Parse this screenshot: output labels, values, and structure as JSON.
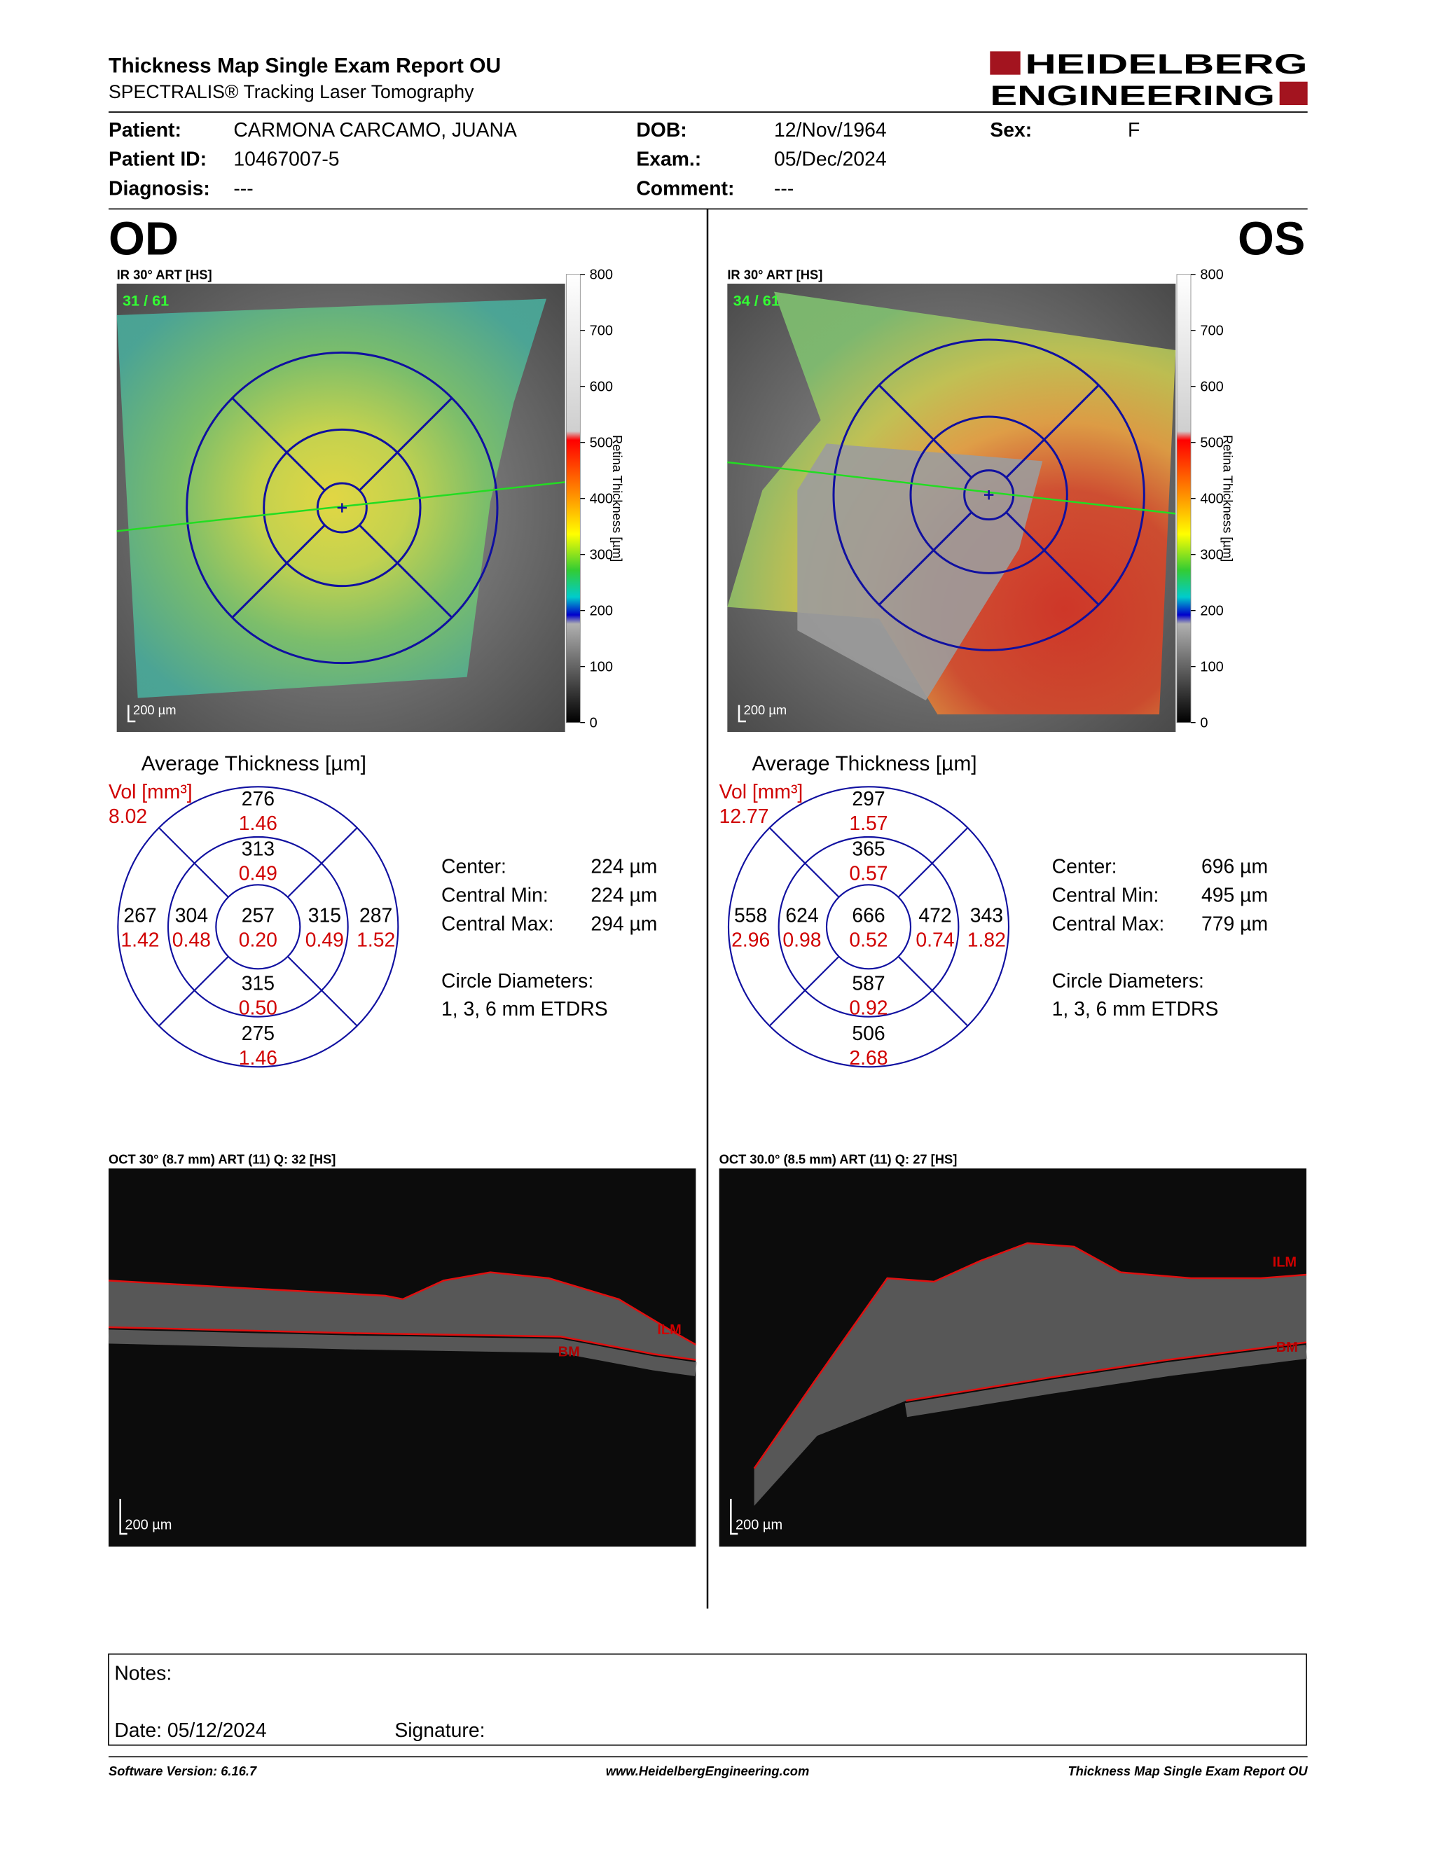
{
  "header": {
    "title": "Thickness Map Single Exam Report OU",
    "subtitle": "SPECTRALIS® Tracking Laser Tomography",
    "logo_line1": "HEIDELBERG",
    "logo_line2": "ENGINEERING"
  },
  "patient": [
    {
      "label": "Patient:",
      "value": "CARMONA CARCAMO, JUANA"
    },
    {
      "label": "Patient ID:",
      "value": "10467007-5"
    },
    {
      "label": "Diagnosis:",
      "value": "---"
    },
    {
      "label": "DOB:",
      "value": "12/Nov/1964"
    },
    {
      "label": "Exam.:",
      "value": "05/Dec/2024"
    },
    {
      "label": "Comment:",
      "value": "---"
    },
    {
      "label": "Sex:",
      "value": "F"
    }
  ],
  "eyes": [
    {
      "side": "OD",
      "fundus_label": "IR 30° ART [HS]",
      "scan_index": "31 / 61",
      "scale_label": "200 µm",
      "colorbar_ticks": [
        800,
        700,
        600,
        500,
        400,
        300,
        200,
        100,
        0
      ],
      "colorbar_title": "Retina  Thickness [µm]",
      "avg_title": "Average Thickness [µm]",
      "vol_label": "Vol [mm³]",
      "vol_value": "8.02",
      "sectors": [
        {
          "thickness": "276",
          "volume": "1.46"
        },
        {
          "thickness": "313",
          "volume": "0.49"
        },
        {
          "thickness": "267",
          "volume": "1.42"
        },
        {
          "thickness": "304",
          "volume": "0.48"
        },
        {
          "thickness": "257",
          "volume": "0.20"
        },
        {
          "thickness": "315",
          "volume": "0.49"
        },
        {
          "thickness": "287",
          "volume": "1.52"
        },
        {
          "thickness": "315",
          "volume": "0.50"
        },
        {
          "thickness": "275",
          "volume": "1.46"
        }
      ],
      "stats": [
        {
          "label": "Center:",
          "value": "224 µm"
        },
        {
          "label": "Central Min:",
          "value": "224 µm"
        },
        {
          "label": "Central Max:",
          "value": "294 µm"
        }
      ],
      "circle_title": "Circle Diameters:",
      "circle_value": "1, 3, 6 mm ETDRS",
      "oct_label": "OCT 30° (8.7 mm) ART (11) Q: 32 [HS]",
      "oct_scale": "200 µm",
      "ilm": "ILM",
      "bm": "BM"
    },
    {
      "side": "OS",
      "fundus_label": "IR 30° ART [HS]",
      "scan_index": "34 / 61",
      "scale_label": "200 µm",
      "colorbar_ticks": [
        800,
        700,
        600,
        500,
        400,
        300,
        200,
        100,
        0
      ],
      "colorbar_title": "Retina  Thickness [µm]",
      "avg_title": "Average Thickness [µm]",
      "vol_label": "Vol [mm³]",
      "vol_value": "12.77",
      "sectors": [
        {
          "thickness": "297",
          "volume": "1.57"
        },
        {
          "thickness": "365",
          "volume": "0.57"
        },
        {
          "thickness": "558",
          "volume": "2.96"
        },
        {
          "thickness": "624",
          "volume": "0.98"
        },
        {
          "thickness": "666",
          "volume": "0.52"
        },
        {
          "thickness": "472",
          "volume": "0.74"
        },
        {
          "thickness": "343",
          "volume": "1.82"
        },
        {
          "thickness": "587",
          "volume": "0.92"
        },
        {
          "thickness": "506",
          "volume": "2.68"
        }
      ],
      "stats": [
        {
          "label": "Center:",
          "value": "696 µm"
        },
        {
          "label": "Central Min:",
          "value": "495 µm"
        },
        {
          "label": "Central Max:",
          "value": "779 µm"
        }
      ],
      "circle_title": "Circle Diameters:",
      "circle_value": "1, 3, 6 mm ETDRS",
      "oct_label": "OCT 30.0° (8.5 mm) ART (11) Q: 27 [HS]",
      "oct_scale": "200 µm",
      "ilm": "ILM",
      "bm": "BM"
    }
  ],
  "notes": {
    "label": "Notes:",
    "date": "Date: 05/12/2024",
    "signature": "Signature:"
  },
  "footer": {
    "software": "Software Version: 6.16.7",
    "url": "www.HeidelbergEngineering.com",
    "report": "Thickness Map Single Exam Report OU"
  }
}
